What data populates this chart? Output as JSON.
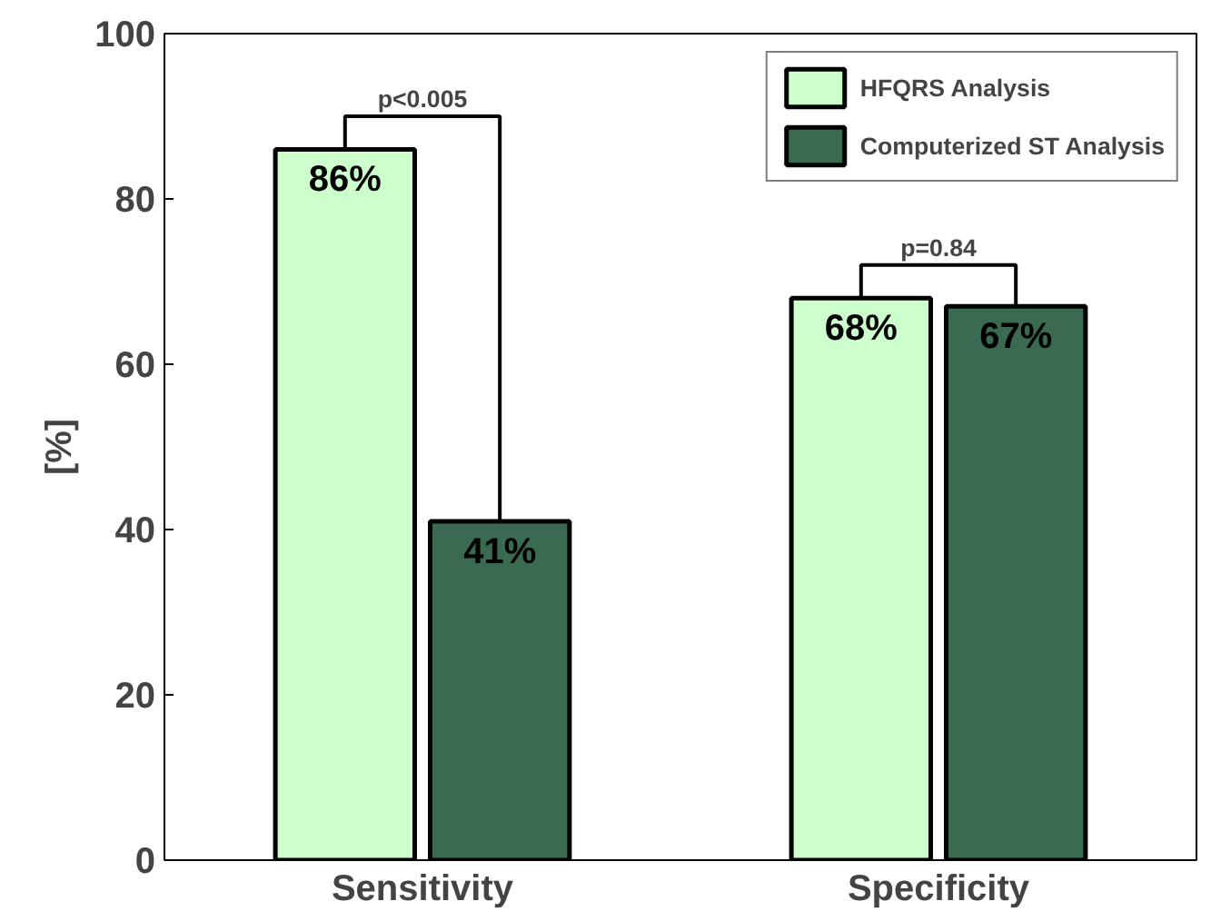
{
  "chart_data": {
    "type": "bar",
    "ylabel": "[%]",
    "categories": [
      "Sensitivity",
      "Specificity"
    ],
    "series": [
      {
        "name": "HFQRS Analysis",
        "color": "#ccffcc",
        "values": [
          86,
          68
        ],
        "value_labels": [
          "86%",
          "68%"
        ]
      },
      {
        "name": "Computerized ST Analysis",
        "color": "#3a6b52",
        "values": [
          41,
          67
        ],
        "value_labels": [
          "41%",
          "67%"
        ]
      }
    ],
    "ylim": [
      0,
      100
    ],
    "yticks": [
      0,
      20,
      40,
      60,
      80,
      100
    ],
    "grid": false,
    "legend": "top right",
    "annotations": [
      "p<0.005",
      "p=0.84"
    ]
  }
}
